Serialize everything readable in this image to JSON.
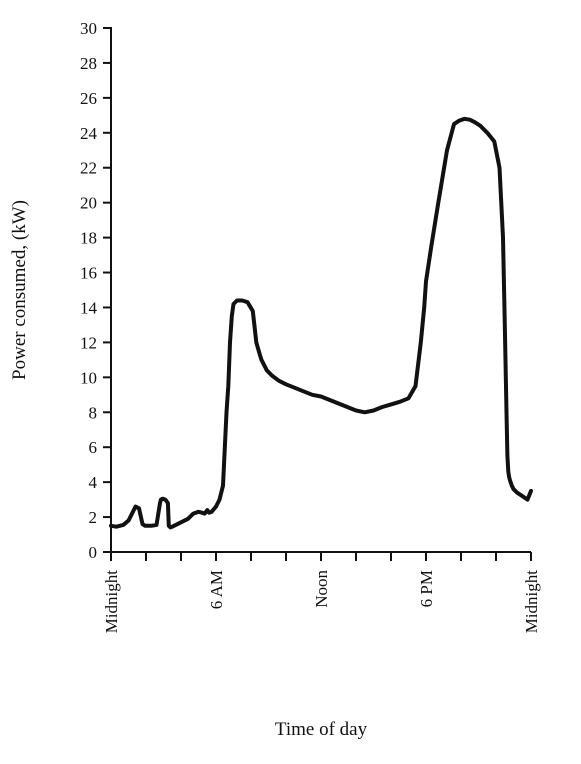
{
  "chart_data": {
    "type": "line",
    "title": "",
    "xlabel": "Time of day",
    "ylabel": "Power consumed, (kW)",
    "x_unit": "hours since midnight",
    "xlim": [
      0,
      24
    ],
    "ylim": [
      0,
      30
    ],
    "y_ticks": [
      0,
      2,
      4,
      6,
      8,
      10,
      12,
      14,
      16,
      18,
      20,
      22,
      24,
      26,
      28,
      30
    ],
    "x_ticks": [
      0,
      2,
      4,
      6,
      8,
      10,
      12,
      14,
      16,
      18,
      20,
      22,
      24
    ],
    "x_tick_labels": [
      {
        "x": 0,
        "label": "Midnight"
      },
      {
        "x": 6,
        "label": "6 AM"
      },
      {
        "x": 12,
        "label": "Noon"
      },
      {
        "x": 18,
        "label": "6 PM"
      },
      {
        "x": 24,
        "label": "Midnight"
      }
    ],
    "grid": false,
    "line_color": "#111111",
    "series": [
      {
        "x": [
          0.0,
          0.3,
          0.7,
          1.0,
          1.2,
          1.4,
          1.6,
          1.8,
          1.95,
          2.0,
          2.05,
          2.3,
          2.6,
          2.8,
          2.85,
          2.95,
          3.1,
          3.25,
          3.3,
          3.4,
          3.6,
          4.0,
          4.4,
          4.7,
          5.0,
          5.2,
          5.35,
          5.5,
          5.6,
          5.75,
          6.0,
          6.2,
          6.4,
          6.6,
          6.7,
          6.8,
          6.9,
          7.0,
          7.2,
          7.5,
          7.8,
          8.1,
          8.3,
          8.5,
          8.6,
          8.7,
          8.9,
          9.2,
          9.6,
          10.0,
          10.5,
          11.0,
          11.5,
          12.0,
          12.5,
          13.0,
          13.5,
          14.0,
          14.5,
          15.0,
          15.5,
          16.0,
          16.5,
          17.0,
          17.4,
          17.7,
          17.9,
          18.0,
          18.3,
          18.7,
          19.2,
          19.6,
          19.9,
          20.2,
          20.5,
          20.8,
          21.1,
          21.5,
          21.9,
          22.2,
          22.4,
          22.5,
          22.6,
          22.65,
          22.7,
          22.75,
          22.8,
          22.9,
          23.0,
          23.2,
          23.5,
          23.8,
          24.0
        ],
        "y": [
          1.5,
          1.45,
          1.55,
          1.8,
          2.2,
          2.6,
          2.5,
          1.6,
          1.5,
          1.5,
          1.5,
          1.5,
          1.55,
          2.8,
          3.0,
          3.05,
          3.0,
          2.8,
          1.5,
          1.4,
          1.5,
          1.7,
          1.9,
          2.2,
          2.3,
          2.25,
          2.2,
          2.4,
          2.25,
          2.3,
          2.6,
          3.0,
          3.8,
          8.0,
          9.5,
          12.0,
          13.5,
          14.2,
          14.4,
          14.4,
          14.3,
          13.8,
          12.0,
          11.3,
          11.0,
          10.8,
          10.4,
          10.1,
          9.8,
          9.6,
          9.4,
          9.2,
          9.0,
          8.9,
          8.7,
          8.5,
          8.3,
          8.1,
          8.0,
          8.1,
          8.3,
          8.45,
          8.6,
          8.8,
          9.5,
          12.0,
          14.0,
          15.5,
          17.5,
          20.0,
          23.0,
          24.5,
          24.7,
          24.8,
          24.75,
          24.6,
          24.4,
          24.0,
          23.5,
          22.0,
          18.0,
          13.0,
          8.0,
          5.5,
          4.6,
          4.3,
          4.1,
          3.8,
          3.6,
          3.4,
          3.2,
          3.0,
          3.5
        ]
      }
    ]
  }
}
